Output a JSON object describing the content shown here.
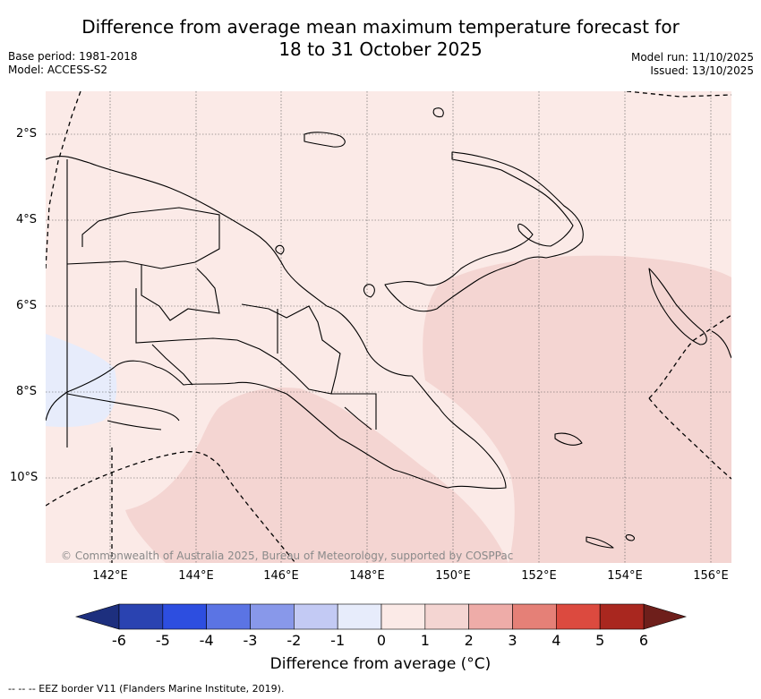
{
  "header": {
    "title_line1": "Difference from average mean maximum temperature forecast for",
    "title_line2": "18 to 31 October 2025",
    "base_period": "Base period: 1981-2018",
    "model": "Model: ACCESS-S2",
    "model_run": "Model run: 11/10/2025",
    "issued": "Issued: 13/10/2025"
  },
  "map": {
    "region": "Papua New Guinea",
    "latitude_labels": [
      "2°S",
      "4°S",
      "6°S",
      "8°S",
      "10°S"
    ],
    "longitude_labels": [
      "142°E",
      "144°E",
      "146°E",
      "148°E",
      "150°E",
      "152°E",
      "154°E",
      "156°E"
    ],
    "copyright": "© Commonwealth of Australia 2025, Bureau of Meteorology, supported by COSPPac",
    "shading_colors": {
      "negative_0_to_1": "#e7ecfb",
      "positive_0_to_1": "#fbeae7",
      "positive_1_to_2": "#f4d5d2"
    }
  },
  "colorbar": {
    "title": "Difference from average (°C)",
    "tick_labels": [
      "-6",
      "-5",
      "-4",
      "-3",
      "-2",
      "-1",
      "0",
      "1",
      "2",
      "3",
      "4",
      "5",
      "6"
    ],
    "under_color": "#1d2f7e",
    "over_color": "#6e1f1b",
    "colors": [
      "#2a43b1",
      "#2d4ee0",
      "#5b74e4",
      "#8898ea",
      "#c3caf4",
      "#e7ecfb",
      "#fbeae7",
      "#f4d5d2",
      "#eeaca8",
      "#e58077",
      "#dc4a3f",
      "#a9271f"
    ]
  },
  "footer": {
    "legend_text": "-- -- -- EEZ border V11 (Flanders Marine Institute, 2019)."
  }
}
